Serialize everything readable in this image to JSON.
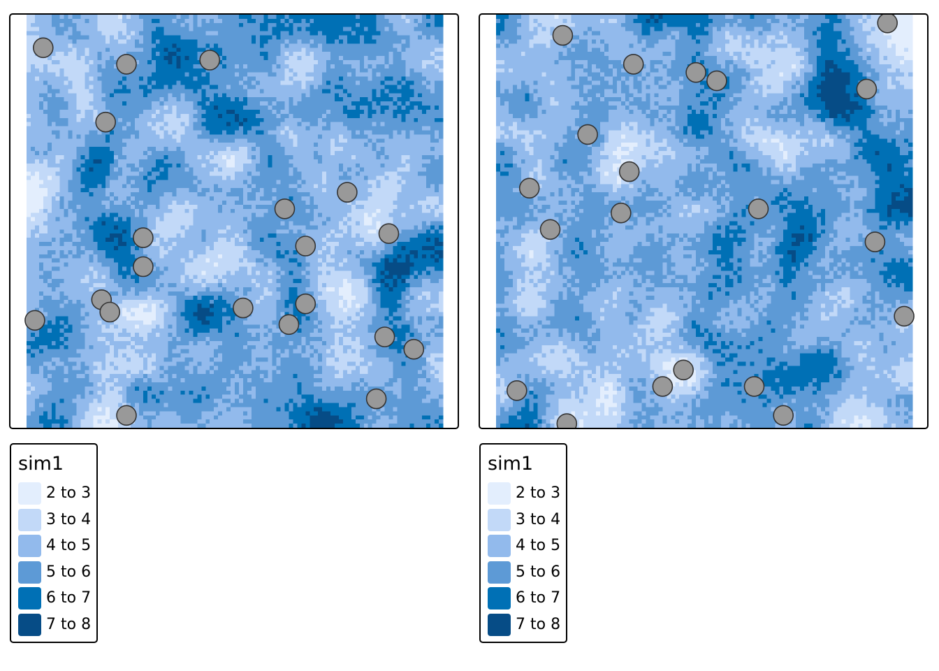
{
  "colors": {
    "background": "#ffffff",
    "point_fill": "#999999",
    "point_stroke": "#333333",
    "ramp": [
      "#e3eefd",
      "#c2d9f8",
      "#92baec",
      "#5d9ad6",
      "#0070b5",
      "#064c86"
    ]
  },
  "legend": {
    "title": "sim1",
    "classes": [
      {
        "label": "2 to 3",
        "color": "#e3eefd"
      },
      {
        "label": "3 to 4",
        "color": "#c2d9f8"
      },
      {
        "label": "4 to 5",
        "color": "#92baec"
      },
      {
        "label": "5 to 6",
        "color": "#5d9ad6"
      },
      {
        "label": "6 to 7",
        "color": "#0070b5"
      },
      {
        "label": "7 to 8",
        "color": "#064c86"
      }
    ]
  },
  "maps": [
    {
      "seed": 11,
      "points": [
        [
          0.04,
          0.92
        ],
        [
          0.24,
          0.88
        ],
        [
          0.44,
          0.89
        ],
        [
          0.19,
          0.74
        ],
        [
          0.62,
          0.53
        ],
        [
          0.77,
          0.57
        ],
        [
          0.28,
          0.46
        ],
        [
          0.67,
          0.44
        ],
        [
          0.87,
          0.47
        ],
        [
          0.28,
          0.39
        ],
        [
          0.18,
          0.31
        ],
        [
          0.2,
          0.28
        ],
        [
          0.02,
          0.26
        ],
        [
          0.52,
          0.29
        ],
        [
          0.63,
          0.25
        ],
        [
          0.67,
          0.3
        ],
        [
          0.86,
          0.22
        ],
        [
          0.93,
          0.19
        ],
        [
          0.84,
          0.07
        ],
        [
          0.24,
          0.03
        ]
      ]
    },
    {
      "seed": 29,
      "points": [
        [
          0.16,
          0.95
        ],
        [
          0.33,
          0.88
        ],
        [
          0.48,
          0.86
        ],
        [
          0.53,
          0.84
        ],
        [
          0.94,
          0.98
        ],
        [
          0.89,
          0.82
        ],
        [
          0.22,
          0.71
        ],
        [
          0.32,
          0.62
        ],
        [
          0.08,
          0.58
        ],
        [
          0.3,
          0.52
        ],
        [
          0.13,
          0.48
        ],
        [
          0.63,
          0.53
        ],
        [
          0.91,
          0.45
        ],
        [
          0.98,
          0.27
        ],
        [
          0.45,
          0.14
        ],
        [
          0.4,
          0.1
        ],
        [
          0.62,
          0.1
        ],
        [
          0.05,
          0.09
        ],
        [
          0.17,
          0.01
        ],
        [
          0.69,
          0.03
        ]
      ]
    }
  ]
}
